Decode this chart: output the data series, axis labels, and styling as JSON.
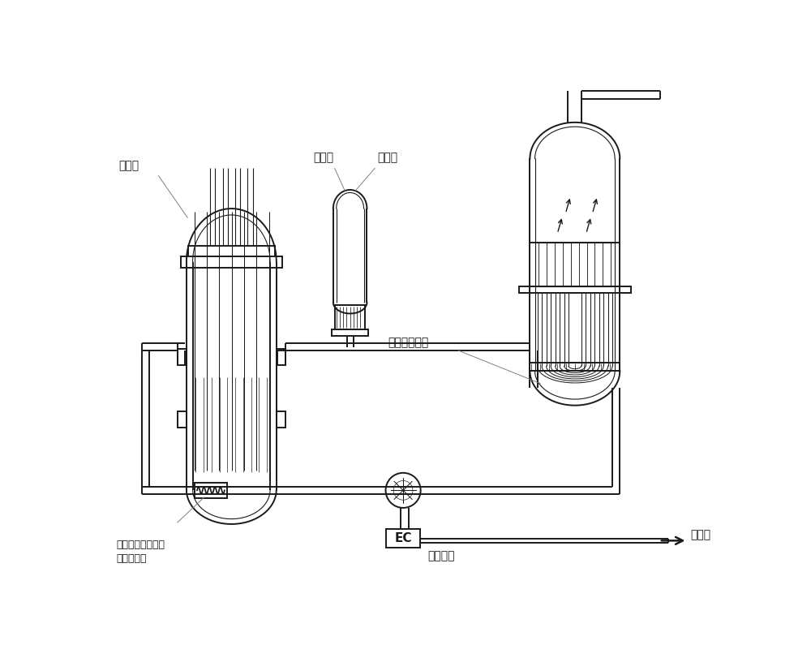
{
  "bg_color": "#ffffff",
  "line_color": "#1a1a1a",
  "lw": 1.4,
  "lw_thin": 0.8,
  "labels": {
    "reactor": "反应堆",
    "relief_valve": "释放阀",
    "safety_valve": "安全阀",
    "sg_tube": "蒸发器传热管",
    "aux_system": "与主管道相连的某\n他辅助系统",
    "drain_valve": "排水阀",
    "cooling": "设冷系统",
    "ec": "EC"
  },
  "font_size": 10
}
